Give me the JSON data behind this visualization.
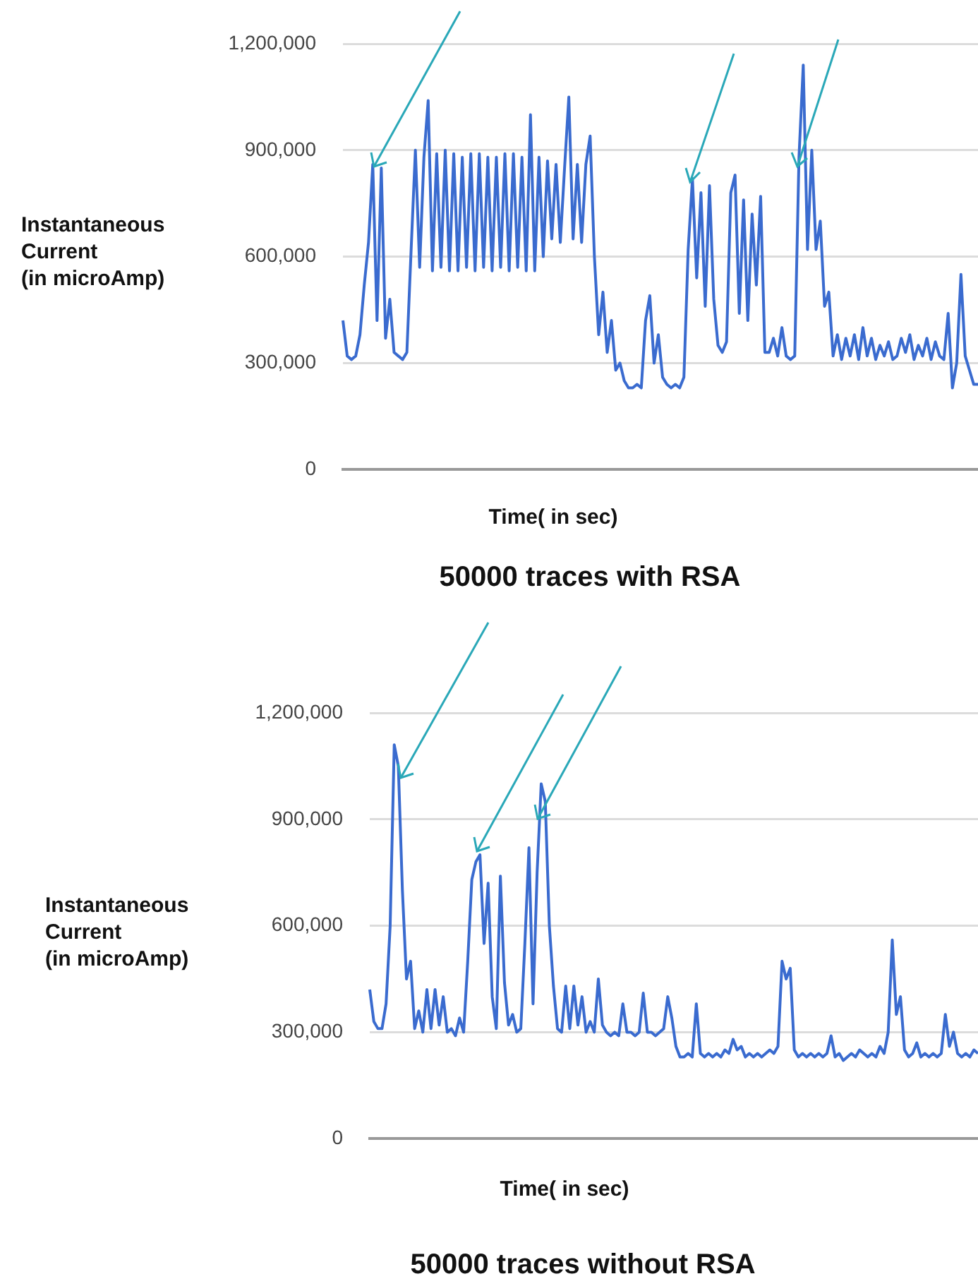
{
  "chart_data": [
    {
      "type": "line",
      "title": "50000 traces with RSA",
      "xlabel": "Time( in sec)",
      "ylabel": "Instantaneous\nCurrent\n(in microAmp)",
      "categories": [
        null,
        null,
        null,
        null,
        null,
        null,
        null,
        null,
        null,
        null,
        null,
        null,
        null,
        null,
        null,
        null,
        null,
        null,
        null,
        null,
        null,
        null,
        null,
        null,
        null,
        null,
        null,
        null,
        null,
        null,
        null,
        null,
        null,
        null,
        null,
        null,
        null,
        null,
        null,
        null,
        null,
        null,
        null,
        null,
        null,
        null,
        null,
        null,
        null,
        null,
        null,
        null,
        null,
        null,
        null,
        null,
        null,
        null,
        null,
        null,
        null,
        null,
        null,
        null,
        null,
        null,
        null,
        null,
        null,
        null,
        null,
        null,
        null,
        null,
        null,
        null,
        null,
        null,
        null,
        null,
        null,
        null,
        null,
        null,
        null,
        null,
        null,
        null,
        null,
        null,
        null,
        null,
        null,
        null,
        null,
        null,
        null,
        null,
        null,
        null,
        null,
        null,
        null,
        null,
        null,
        null,
        null,
        null,
        null,
        null,
        null,
        null,
        null,
        null,
        null,
        null,
        null,
        null,
        null,
        null,
        null,
        null,
        null,
        null,
        null,
        null,
        null,
        null,
        null,
        null,
        null,
        null,
        null,
        null,
        null,
        null,
        null,
        null,
        null,
        null,
        null,
        null,
        null,
        null,
        null,
        null,
        null,
        null,
        null,
        null
      ],
      "series": [
        {
          "color": "#3a6bcf",
          "values": [
            420000,
            320000,
            310000,
            320000,
            380000,
            520000,
            640000,
            860000,
            420000,
            850000,
            370000,
            480000,
            330000,
            320000,
            310000,
            330000,
            620000,
            900000,
            570000,
            880000,
            1040000,
            560000,
            890000,
            570000,
            900000,
            560000,
            890000,
            560000,
            880000,
            570000,
            890000,
            560000,
            890000,
            570000,
            880000,
            560000,
            880000,
            570000,
            890000,
            560000,
            890000,
            570000,
            880000,
            560000,
            1000000,
            560000,
            880000,
            600000,
            870000,
            650000,
            860000,
            640000,
            850000,
            1050000,
            650000,
            860000,
            640000,
            860000,
            940000,
            600000,
            380000,
            500000,
            330000,
            420000,
            280000,
            300000,
            250000,
            230000,
            230000,
            240000,
            230000,
            420000,
            490000,
            300000,
            380000,
            260000,
            240000,
            230000,
            240000,
            230000,
            260000,
            620000,
            820000,
            540000,
            780000,
            460000,
            800000,
            480000,
            350000,
            330000,
            360000,
            780000,
            830000,
            440000,
            760000,
            420000,
            720000,
            520000,
            770000,
            330000,
            330000,
            370000,
            320000,
            400000,
            320000,
            310000,
            320000,
            880000,
            1140000,
            620000,
            900000,
            620000,
            700000,
            460000,
            500000,
            320000,
            380000,
            310000,
            370000,
            320000,
            380000,
            310000,
            400000,
            320000,
            370000,
            310000,
            350000,
            320000,
            360000,
            310000,
            320000,
            370000,
            330000,
            380000,
            310000,
            350000,
            320000,
            370000,
            310000,
            360000,
            320000,
            310000,
            440000,
            230000,
            300000,
            550000,
            320000,
            280000,
            240000,
            240000
          ]
        }
      ],
      "ylim": [
        0,
        1200000
      ],
      "yticks": [
        0,
        {
          "value": 300000,
          "label": "300,000"
        },
        {
          "value": 600000,
          "label": "600,000"
        },
        {
          "value": 900000,
          "label": "900,000"
        },
        {
          "value": 1200000,
          "label": "1,200,000"
        }
      ],
      "grid": "y",
      "legend": false,
      "marker": "none",
      "line_style": "solid",
      "tick_labels": "y"
    },
    {
      "type": "line",
      "title": "50000 traces without RSA",
      "xlabel": "Time( in sec)",
      "ylabel": "Instantaneous\nCurrent\n(in microAmp)",
      "categories": [
        null,
        null,
        null,
        null,
        null,
        null,
        null,
        null,
        null,
        null,
        null,
        null,
        null,
        null,
        null,
        null,
        null,
        null,
        null,
        null,
        null,
        null,
        null,
        null,
        null,
        null,
        null,
        null,
        null,
        null,
        null,
        null,
        null,
        null,
        null,
        null,
        null,
        null,
        null,
        null,
        null,
        null,
        null,
        null,
        null,
        null,
        null,
        null,
        null,
        null,
        null,
        null,
        null,
        null,
        null,
        null,
        null,
        null,
        null,
        null,
        null,
        null,
        null,
        null,
        null,
        null,
        null,
        null,
        null,
        null,
        null,
        null,
        null,
        null,
        null,
        null,
        null,
        null,
        null,
        null,
        null,
        null,
        null,
        null,
        null,
        null,
        null,
        null,
        null,
        null,
        null,
        null,
        null,
        null,
        null,
        null,
        null,
        null,
        null,
        null,
        null,
        null,
        null,
        null,
        null,
        null,
        null,
        null,
        null,
        null,
        null,
        null,
        null,
        null,
        null,
        null,
        null,
        null,
        null,
        null,
        null,
        null,
        null,
        null,
        null,
        null,
        null,
        null,
        null,
        null,
        null,
        null,
        null,
        null,
        null,
        null,
        null,
        null,
        null,
        null,
        null,
        null,
        null,
        null,
        null,
        null,
        null,
        null,
        null,
        null
      ],
      "series": [
        {
          "color": "#3a6bcf",
          "values": [
            420000,
            330000,
            310000,
            310000,
            380000,
            600000,
            1110000,
            1050000,
            700000,
            450000,
            500000,
            310000,
            360000,
            300000,
            420000,
            310000,
            420000,
            320000,
            400000,
            300000,
            310000,
            290000,
            340000,
            300000,
            500000,
            730000,
            780000,
            800000,
            550000,
            720000,
            400000,
            310000,
            740000,
            440000,
            320000,
            350000,
            300000,
            310000,
            550000,
            820000,
            380000,
            750000,
            1000000,
            950000,
            600000,
            430000,
            310000,
            300000,
            430000,
            310000,
            430000,
            320000,
            400000,
            300000,
            330000,
            300000,
            450000,
            320000,
            300000,
            290000,
            300000,
            290000,
            380000,
            300000,
            300000,
            290000,
            300000,
            410000,
            300000,
            300000,
            290000,
            300000,
            310000,
            400000,
            340000,
            260000,
            230000,
            230000,
            240000,
            230000,
            380000,
            240000,
            230000,
            240000,
            230000,
            240000,
            230000,
            250000,
            240000,
            280000,
            250000,
            260000,
            230000,
            240000,
            230000,
            240000,
            230000,
            240000,
            250000,
            240000,
            260000,
            500000,
            450000,
            480000,
            250000,
            230000,
            240000,
            230000,
            240000,
            230000,
            240000,
            230000,
            240000,
            290000,
            230000,
            240000,
            220000,
            230000,
            240000,
            230000,
            250000,
            240000,
            230000,
            240000,
            230000,
            260000,
            240000,
            300000,
            560000,
            350000,
            400000,
            250000,
            230000,
            240000,
            270000,
            230000,
            240000,
            230000,
            240000,
            230000,
            240000,
            350000,
            260000,
            300000,
            240000,
            230000,
            240000,
            230000,
            250000,
            240000
          ]
        }
      ],
      "ylim": [
        0,
        1200000
      ],
      "yticks": [
        0,
        {
          "value": 300000,
          "label": "300,000"
        },
        {
          "value": 600000,
          "label": "600,000"
        },
        {
          "value": 900000,
          "label": "900,000"
        },
        {
          "value": 1200000,
          "label": "1,200,000"
        }
      ],
      "grid": "y",
      "legend": false,
      "marker": "none",
      "line_style": "solid",
      "tick_labels": "y"
    }
  ]
}
